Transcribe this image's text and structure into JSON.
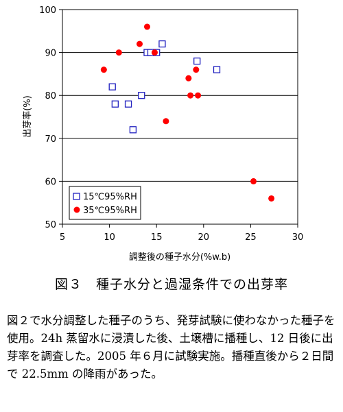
{
  "chart_data": {
    "type": "scatter",
    "xlabel": "調整後の種子水分(%w.b)",
    "ylabel": "出芽率(%)",
    "xlim": [
      5,
      30
    ],
    "ylim": [
      50,
      100
    ],
    "xticks": [
      "5",
      "10",
      "15",
      "20",
      "25",
      "30"
    ],
    "yticks": [
      "50",
      "60",
      "70",
      "80",
      "90",
      "100"
    ],
    "grid": "horizontal",
    "legend_position": "bottom-left",
    "series": [
      {
        "name": "15℃95%RH",
        "marker": "open-square",
        "color": "#1f1fbf",
        "points": [
          {
            "x": 10.3,
            "y": 82
          },
          {
            "x": 10.6,
            "y": 78
          },
          {
            "x": 12.0,
            "y": 78
          },
          {
            "x": 12.5,
            "y": 72
          },
          {
            "x": 13.4,
            "y": 80
          },
          {
            "x": 14.0,
            "y": 90
          },
          {
            "x": 14.4,
            "y": 90
          },
          {
            "x": 15.0,
            "y": 90
          },
          {
            "x": 15.6,
            "y": 92
          },
          {
            "x": 19.3,
            "y": 88
          },
          {
            "x": 21.4,
            "y": 86
          }
        ]
      },
      {
        "name": "35℃95%RH",
        "marker": "filled-circle",
        "color": "#ff0000",
        "points": [
          {
            "x": 9.4,
            "y": 86
          },
          {
            "x": 11.0,
            "y": 90
          },
          {
            "x": 13.2,
            "y": 92
          },
          {
            "x": 14.0,
            "y": 96
          },
          {
            "x": 14.8,
            "y": 90
          },
          {
            "x": 16.0,
            "y": 74
          },
          {
            "x": 18.4,
            "y": 84
          },
          {
            "x": 18.6,
            "y": 80
          },
          {
            "x": 19.2,
            "y": 86
          },
          {
            "x": 19.4,
            "y": 80
          },
          {
            "x": 25.3,
            "y": 60
          },
          {
            "x": 27.2,
            "y": 56
          }
        ]
      }
    ]
  },
  "caption": "図３　種子水分と過湿条件での出芽率",
  "description": "図２で水分調整した種子のうち、発芽試験に使わなかった種子を使用。24h 蒸留水に浸漬した後、土壌槽に播種し、12 日後に出芽率を調査した。2005 年６月に試験実施。播種直後から２日間で 22.5mm の降雨があった。"
}
